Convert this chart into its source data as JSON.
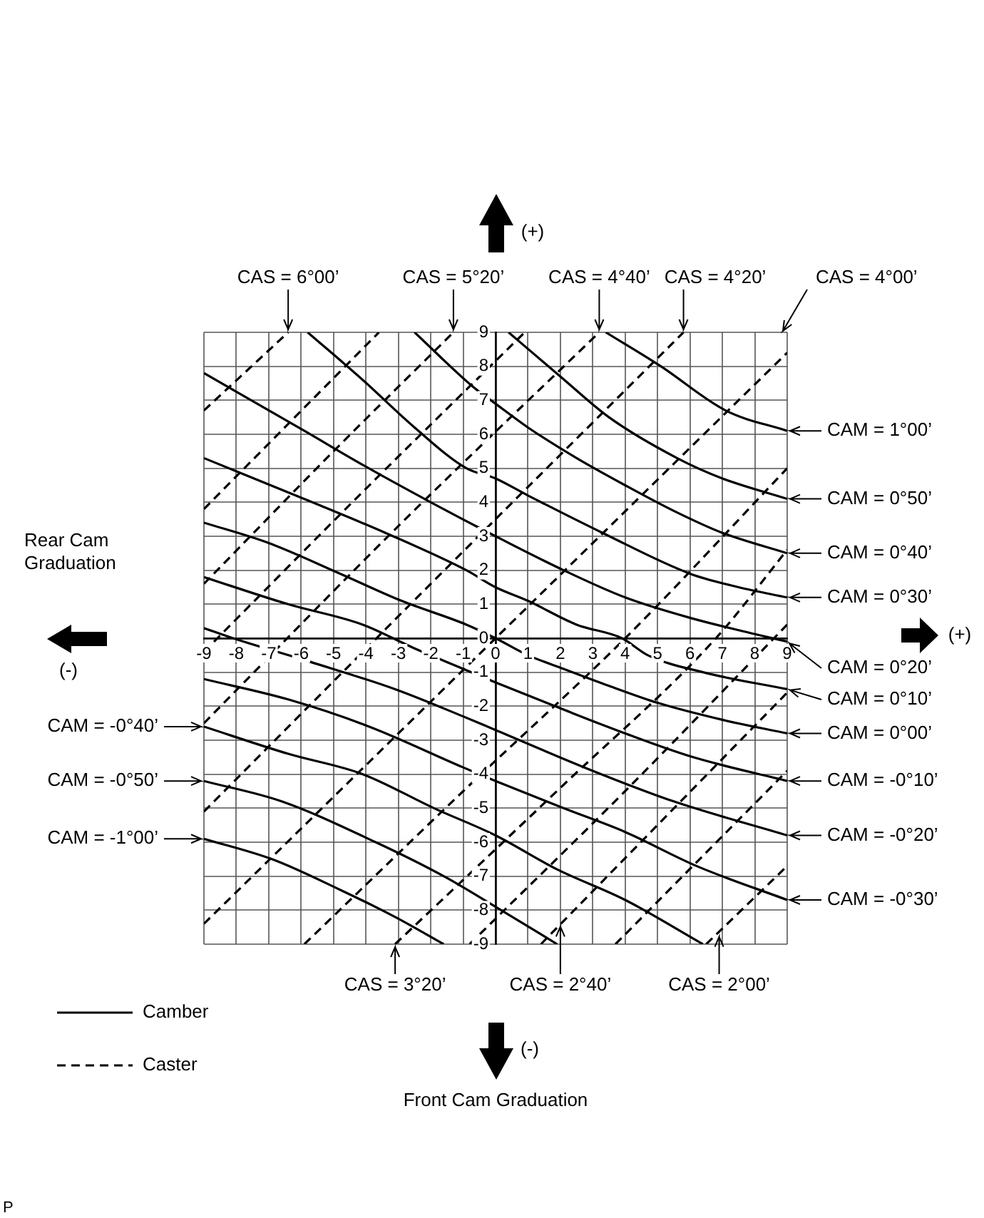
{
  "chart_data": {
    "type": "line",
    "xlabel": "Rear Cam Graduation",
    "xlim": [
      -9,
      9
    ],
    "ylim": [
      -9,
      9
    ],
    "xticks": [
      -9,
      -8,
      -7,
      -6,
      -5,
      -4,
      -3,
      -2,
      -1,
      0,
      1,
      2,
      3,
      4,
      5,
      6,
      7,
      8,
      9
    ],
    "yticks": [
      -9,
      -8,
      -7,
      -6,
      -5,
      -4,
      -3,
      -2,
      -1,
      0,
      1,
      2,
      3,
      4,
      5,
      6,
      7,
      8,
      9
    ],
    "grid": true,
    "legend": "bottom left",
    "series": [
      {
        "name": "Camber",
        "color": "#000000",
        "line_style": "solid",
        "x": [
          3.4,
          5.1,
          7.1,
          9
        ],
        "values": [
          9,
          8,
          6.7,
          6.1
        ]
      },
      {
        "color": "#000000",
        "line_style": "solid",
        "x": [
          0.4,
          2,
          3.5,
          5.6,
          7,
          9
        ],
        "values": [
          9,
          7.7,
          6.5,
          5.3,
          4.7,
          4.1
        ]
      },
      {
        "color": "#000000",
        "line_style": "solid",
        "x": [
          -2.5,
          -0.7,
          0,
          1,
          2.5,
          4,
          5.6,
          7,
          9
        ],
        "values": [
          9,
          7.4,
          6.9,
          6.2,
          5.3,
          4.5,
          3.7,
          3.1,
          2.5
        ]
      },
      {
        "color": "#000000",
        "line_style": "solid",
        "x": [
          -5.8,
          -4.1,
          -2.5,
          -0.9,
          0,
          1,
          3.3,
          6,
          7.5,
          9
        ],
        "values": [
          9,
          7.6,
          6.2,
          5,
          4.7,
          4.2,
          3.1,
          1.9,
          1.5,
          1.2
        ]
      },
      {
        "color": "#000000",
        "line_style": "solid",
        "x": [
          -9,
          -5.9,
          -4.1,
          -2,
          0,
          2.1,
          4,
          6,
          8.1,
          9
        ],
        "values": [
          7.8,
          6.1,
          5.1,
          4,
          3,
          2,
          1.2,
          0.6,
          0.1,
          -0.1
        ]
      },
      {
        "color": "#000000",
        "line_style": "solid",
        "x": [
          -9,
          -5.4,
          -3.4,
          -0.9,
          0,
          1,
          2.5,
          3.9,
          4.7,
          6.4,
          9
        ],
        "values": [
          5.3,
          3.9,
          3.1,
          2,
          1.5,
          1.1,
          0.4,
          0,
          -0.5,
          -1,
          -1.5
        ]
      },
      {
        "color": "#000000",
        "line_style": "solid",
        "x": [
          -9,
          -7,
          -4.8,
          -2.9,
          -0.9,
          0,
          1,
          2.1,
          3.5,
          5,
          7,
          9
        ],
        "values": [
          3.4,
          2.8,
          1.9,
          1.1,
          0.4,
          0,
          -0.5,
          -0.9,
          -1.4,
          -1.9,
          -2.4,
          -2.8
        ]
      },
      {
        "color": "#000000",
        "line_style": "solid",
        "x": [
          -9,
          -6.4,
          -4.1,
          -2.5,
          -1,
          0,
          2.1,
          4,
          6.1,
          9
        ],
        "values": [
          1.8,
          1,
          0.4,
          -0.3,
          -0.9,
          -1.3,
          -2.1,
          -2.8,
          -3.5,
          -4.2
        ]
      },
      {
        "color": "#000000",
        "line_style": "solid",
        "x": [
          -9,
          -8.1,
          -5.7,
          -3.1,
          -1,
          0,
          3,
          5.5,
          9
        ],
        "values": [
          0.3,
          0,
          -0.7,
          -1.5,
          -2.3,
          -2.7,
          -3.9,
          -4.8,
          -5.8
        ]
      },
      {
        "color": "#000000",
        "line_style": "solid",
        "x": [
          -9,
          -6.4,
          -3.9,
          -1,
          0,
          2.1,
          4,
          6.2,
          9
        ],
        "values": [
          -1.2,
          -1.8,
          -2.6,
          -3.8,
          -4.2,
          -5,
          -5.7,
          -6.7,
          -7.7
        ]
      },
      {
        "color": "#000000",
        "line_style": "solid",
        "x": [
          -9,
          -6.4,
          -4.1,
          -1.9,
          0,
          1.9,
          4,
          6.4
        ],
        "values": [
          -2.6,
          -3.4,
          -4,
          -5,
          -5.8,
          -6.8,
          -7.7,
          -9
        ]
      },
      {
        "color": "#000000",
        "line_style": "solid",
        "x": [
          -9,
          -6.6,
          -3.7,
          -1.6,
          0,
          1.9
        ],
        "values": [
          -4.2,
          -4.8,
          -6,
          -7,
          -7.9,
          -9
        ]
      },
      {
        "color": "#000000",
        "line_style": "solid",
        "x": [
          -9,
          -6.9,
          -4.8,
          -3.1,
          -1.6
        ],
        "values": [
          -5.9,
          -6.5,
          -7.4,
          -8.2,
          -9
        ]
      },
      {
        "name": "Caster",
        "color": "#000000",
        "line_style": "dashed",
        "x": [
          -9,
          -6.4
        ],
        "values": [
          6.7,
          9
        ]
      },
      {
        "color": "#000000",
        "line_style": "dashed",
        "x": [
          -9,
          -6.3,
          -3.6
        ],
        "values": [
          3.8,
          6.4,
          9
        ]
      },
      {
        "color": "#000000",
        "line_style": "dashed",
        "x": [
          -9,
          -5,
          -1.3
        ],
        "values": [
          1.6,
          5.5,
          9
        ]
      },
      {
        "color": "#000000",
        "line_style": "dashed",
        "x": [
          -9,
          -4,
          0.9
        ],
        "values": [
          -0.4,
          4.4,
          9
        ]
      },
      {
        "color": "#000000",
        "line_style": "dashed",
        "x": [
          -9,
          -3,
          3.2
        ],
        "values": [
          -2.5,
          3.3,
          9
        ]
      },
      {
        "color": "#000000",
        "line_style": "dashed",
        "x": [
          -9,
          -2,
          5.8
        ],
        "values": [
          -5.1,
          1.6,
          9
        ]
      },
      {
        "color": "#000000",
        "line_style": "dashed",
        "x": [
          -9,
          0,
          9
        ],
        "values": [
          -8.4,
          0,
          8.4
        ]
      },
      {
        "color": "#000000",
        "line_style": "dashed",
        "x": [
          -5.9,
          -1,
          4,
          9
        ],
        "values": [
          -9,
          -4.5,
          0,
          5
        ]
      },
      {
        "color": "#000000",
        "line_style": "dashed",
        "x": [
          -3.1,
          2,
          6.8,
          9
        ],
        "values": [
          -9,
          -4.4,
          0,
          2.6
        ]
      },
      {
        "color": "#000000",
        "line_style": "dashed",
        "x": [
          -0.8,
          4.1,
          9
        ],
        "values": [
          -9,
          -4.4,
          0.4
        ]
      },
      {
        "color": "#000000",
        "line_style": "dashed",
        "x": [
          1.4,
          5.2,
          9
        ],
        "values": [
          -9,
          -5.3,
          -1.6
        ]
      },
      {
        "color": "#000000",
        "line_style": "dashed",
        "x": [
          3.7,
          6.4,
          9
        ],
        "values": [
          -9,
          -6.4,
          -3.9
        ]
      },
      {
        "color": "#000000",
        "line_style": "dashed",
        "x": [
          6.5,
          9
        ],
        "values": [
          -9,
          -6.7
        ]
      }
    ],
    "annotations": [
      {
        "text": "CAS = 6°00’",
        "x": -6.4,
        "y": 9
      },
      {
        "text": "CAS = 5°20’",
        "x": -1.3,
        "y": 9
      },
      {
        "text": "CAS = 4°40’",
        "x": 3.2,
        "y": 9
      },
      {
        "text": "CAS = 4°20’",
        "x": 5.8,
        "y": 9
      },
      "CAS = 4°00’",
      {
        "text": "CAM = 1°00’",
        "x": 9,
        "y": 6.1
      },
      {
        "text": "CAM = 0°50’",
        "x": 9,
        "y": 4.1
      },
      {
        "text": "CAM = 0°40’",
        "x": 9,
        "y": 2.5
      },
      {
        "text": "CAM = 0°30’",
        "x": 9,
        "y": 1.2
      },
      {
        "text": "CAM = 0°20’",
        "x": 9,
        "y": -0.1
      },
      {
        "text": "CAM = 0°10’",
        "x": 9,
        "y": -1.5
      },
      {
        "text": "CAM = 0°00’",
        "x": 9,
        "y": -2.8
      },
      {
        "text": "CAM = -0°10’",
        "x": 9,
        "y": -4.2
      },
      {
        "text": "CAM = -0°20’",
        "x": 9,
        "y": -5.8
      },
      {
        "text": "CAM = -0°30’",
        "x": 9,
        "y": -7.7
      },
      {
        "text": "CAM = -0°40’",
        "x": -9,
        "y": -2.6
      },
      {
        "text": "CAM = -0°50’",
        "x": -9,
        "y": -4.2
      },
      {
        "text": "CAM = -1°00’",
        "x": -9,
        "y": -5.9
      },
      {
        "text": "CAS = 3°20’",
        "x": -3.1,
        "y": -9
      },
      {
        "text": "CAS = 2°40’",
        "x": 2,
        "y": -8.4
      },
      {
        "text": "CAS = 2°00’",
        "x": 6.9,
        "y": -8.7
      },
      "(+)",
      "(+)",
      "(-)",
      "(-)",
      "Front Cam Graduation",
      "P"
    ]
  }
}
